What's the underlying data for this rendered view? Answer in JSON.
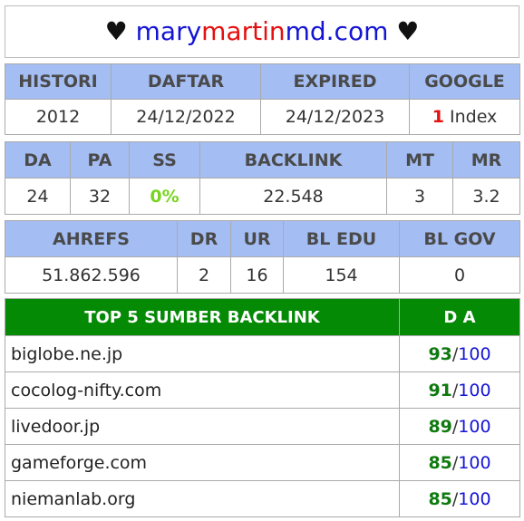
{
  "title": {
    "heart": "♥",
    "part1": "mary",
    "part2": "martin",
    "part3": "md.com"
  },
  "table1": {
    "headers": [
      "HISTORI",
      "DAFTAR",
      "EXPIRED",
      "GOOGLE"
    ],
    "histori": "2012",
    "daftar": "24/12/2022",
    "expired": "24/12/2023",
    "google_count": "1",
    "google_label": "Index"
  },
  "table2": {
    "headers": [
      "DA",
      "PA",
      "SS",
      "BACKLINK",
      "MT",
      "MR"
    ],
    "da": "24",
    "pa": "32",
    "ss": "0%",
    "backlink": "22.548",
    "mt": "3",
    "mr": "3.2"
  },
  "table3": {
    "headers": [
      "AHREFS",
      "DR",
      "UR",
      "BL EDU",
      "BL GOV"
    ],
    "ahrefs": "51.862.596",
    "dr": "2",
    "ur": "16",
    "bl_edu": "154",
    "bl_gov": "0"
  },
  "table4": {
    "header_source": "TOP 5 SUMBER BACKLINK",
    "header_da": "D A",
    "rows": [
      {
        "site": "biglobe.ne.jp",
        "score": "93",
        "max": "100"
      },
      {
        "site": "cocolog-nifty.com",
        "score": "91",
        "max": "100"
      },
      {
        "site": "livedoor.jp",
        "score": "89",
        "max": "100"
      },
      {
        "site": "gameforge.com",
        "score": "85",
        "max": "100"
      },
      {
        "site": "niemanlab.org",
        "score": "85",
        "max": "100"
      }
    ],
    "separator": "/"
  },
  "colors": {
    "header_blue": "#a4bdf3",
    "header_green": "#058a05",
    "title_blue": "#1414d6",
    "title_red": "#e60f0f",
    "score_green": "#107a10"
  }
}
